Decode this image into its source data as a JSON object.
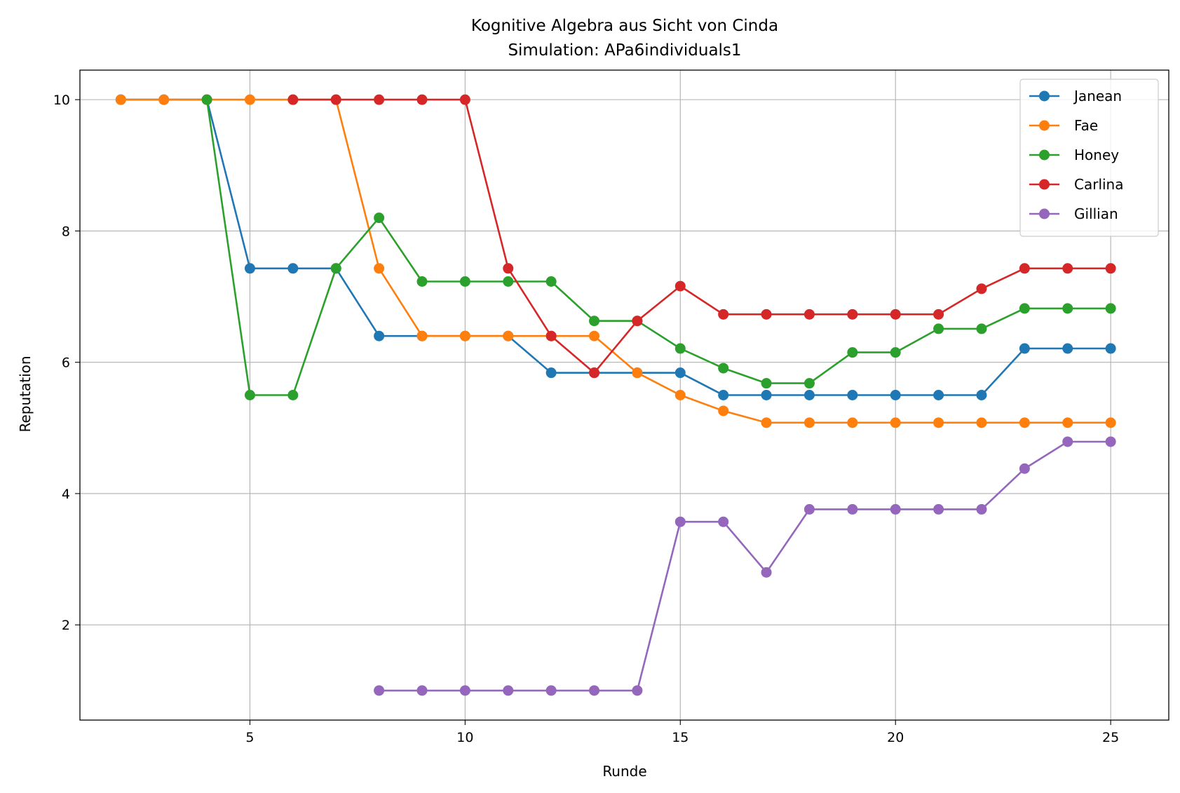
{
  "chart_data": {
    "type": "line",
    "title": "Kognitive Algebra aus Sicht von Cinda",
    "subtitle": "Simulation: APa6individuals1",
    "xlabel": "Runde",
    "ylabel": "Reputation",
    "xlim": [
      1.05,
      26.35
    ],
    "ylim": [
      0.55,
      10.45
    ],
    "xticks": [
      5,
      10,
      15,
      20,
      25
    ],
    "yticks": [
      2,
      4,
      6,
      8,
      10
    ],
    "grid": true,
    "legend_position": "upper right",
    "series": [
      {
        "name": "Janean",
        "color": "#1f77b4",
        "x": [
          2,
          3,
          4,
          5,
          6,
          7,
          8,
          9,
          10,
          11,
          12,
          13,
          14,
          15,
          16,
          17,
          18,
          19,
          20,
          21,
          22,
          23,
          24,
          25
        ],
        "y": [
          10,
          10,
          10,
          7.43,
          7.43,
          7.43,
          6.4,
          6.4,
          6.4,
          6.4,
          5.84,
          5.84,
          5.84,
          5.84,
          5.5,
          5.5,
          5.5,
          5.5,
          5.5,
          5.5,
          5.5,
          6.21,
          6.21,
          6.21
        ]
      },
      {
        "name": "Fae",
        "color": "#ff7f0e",
        "x": [
          2,
          3,
          4,
          5,
          6,
          7,
          8,
          9,
          10,
          11,
          12,
          13,
          14,
          15,
          16,
          17,
          18,
          19,
          20,
          21,
          22,
          23,
          24,
          25
        ],
        "y": [
          10,
          10,
          10,
          10,
          10,
          10,
          7.43,
          6.4,
          6.4,
          6.4,
          6.4,
          6.4,
          5.84,
          5.5,
          5.26,
          5.08,
          5.08,
          5.08,
          5.08,
          5.08,
          5.08,
          5.08,
          5.08,
          5.08
        ]
      },
      {
        "name": "Honey",
        "color": "#2ca02c",
        "x": [
          4,
          5,
          6,
          7,
          8,
          9,
          10,
          11,
          12,
          13,
          14,
          15,
          16,
          17,
          18,
          19,
          20,
          21,
          22,
          23,
          24,
          25
        ],
        "y": [
          10,
          5.5,
          5.5,
          7.43,
          8.2,
          7.23,
          7.23,
          7.23,
          7.23,
          6.63,
          6.63,
          6.21,
          5.91,
          5.68,
          5.68,
          6.15,
          6.15,
          6.51,
          6.51,
          6.82,
          6.82,
          6.82
        ]
      },
      {
        "name": "Carlina",
        "color": "#d62728",
        "x": [
          6,
          7,
          8,
          9,
          10,
          11,
          12,
          13,
          14,
          15,
          16,
          17,
          18,
          19,
          20,
          21,
          22,
          23,
          24,
          25
        ],
        "y": [
          10,
          10,
          10,
          10,
          10,
          7.43,
          6.4,
          5.84,
          6.63,
          7.16,
          6.73,
          6.73,
          6.73,
          6.73,
          6.73,
          6.73,
          7.12,
          7.43,
          7.43,
          7.43
        ]
      },
      {
        "name": "Gillian",
        "color": "#9467bd",
        "x": [
          8,
          9,
          10,
          11,
          12,
          13,
          14,
          15,
          16,
          17,
          18,
          19,
          20,
          21,
          22,
          23,
          24,
          25
        ],
        "y": [
          1,
          1,
          1,
          1,
          1,
          1,
          1,
          3.57,
          3.57,
          2.8,
          3.76,
          3.76,
          3.76,
          3.76,
          3.76,
          4.38,
          4.79,
          4.79
        ]
      }
    ]
  }
}
